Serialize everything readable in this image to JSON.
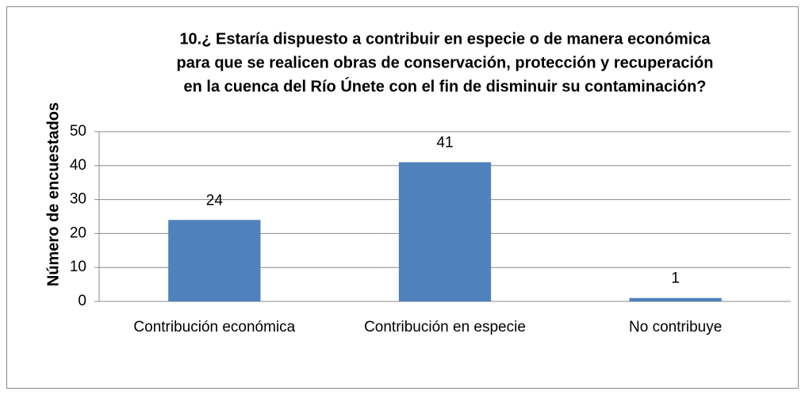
{
  "chart_data": {
    "type": "bar",
    "title": [
      "10.¿ Estaría dispuesto a contribuir en especie o de manera económica",
      "para que se realicen obras de conservación, protección y recuperación",
      "en la cuenca del Río Únete con el fin de disminuir su contaminación?"
    ],
    "y_label": "Número de encuestados",
    "categories": [
      "Contribución económica",
      "Contribución en especie",
      "No contribuye"
    ],
    "values": [
      24,
      41,
      1
    ],
    "color": "#4f81bd",
    "ylim": [
      0,
      50
    ],
    "yticks": [
      0,
      10,
      20,
      30,
      40,
      50
    ],
    "grid": true,
    "data_labels": true
  }
}
